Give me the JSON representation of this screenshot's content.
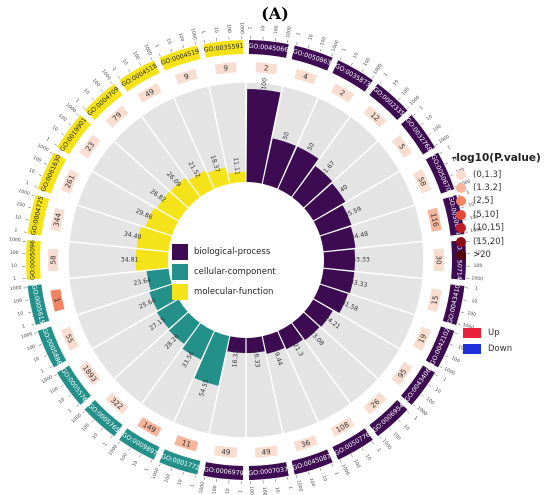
{
  "panel_label": "(A)",
  "legend": {
    "title": "-log10(P.value)",
    "items": [
      {
        "label": "(0,1.3]",
        "color": "#f9ddd0"
      },
      {
        "label": "(1.3,2]",
        "color": "#f6b59a"
      },
      {
        "label": "(2,5]",
        "color": "#ef8362"
      },
      {
        "label": "(5,10]",
        "color": "#e64a36"
      },
      {
        "label": "(10,15]",
        "color": "#c21d24"
      },
      {
        "label": "(15,20]",
        "color": "#8f0d16"
      },
      {
        "label": ">20",
        "color": "#55040a"
      }
    ]
  },
  "reg_legend": [
    {
      "label": "Up",
      "color": "#e8203a"
    },
    {
      "label": "Down",
      "color": "#1c2fd8"
    }
  ],
  "colors": {
    "biological_process": "#3d0b52",
    "cellular_component": "#23908a",
    "molecular_function": "#f5e31a",
    "track_bg": "#e4e4e4",
    "track_line": "#ffffff"
  },
  "chart_data": {
    "type": "circular-bar",
    "scale_ticks": [
      "1",
      "10",
      "100",
      "1000"
    ],
    "category_legend": [
      {
        "key": "biological_process",
        "label": "biological-process"
      },
      {
        "key": "cellular_component",
        "label": "cellular-component"
      },
      {
        "key": "molecular_function",
        "label": "molecular-function"
      }
    ],
    "terms": [
      {
        "id": "GO:0045066",
        "category": "biological_process",
        "count": 2,
        "p_bin": 0,
        "rich_factor": 100
      },
      {
        "id": "GO:0050863",
        "category": "biological_process",
        "count": 4,
        "p_bin": 0,
        "rich_factor": 50
      },
      {
        "id": "GO:0035873",
        "category": "biological_process",
        "count": 2,
        "p_bin": 0,
        "rich_factor": 50
      },
      {
        "id": "GO:0002335",
        "category": "biological_process",
        "count": 12,
        "p_bin": 0,
        "rich_factor": 41.67
      },
      {
        "id": "GO:0032768",
        "category": "biological_process",
        "count": 5,
        "p_bin": 0,
        "rich_factor": 40
      },
      {
        "id": "GO:0050670",
        "category": "biological_process",
        "count": 58,
        "p_bin": 0,
        "rich_factor": 35.59
      },
      {
        "id": "GO:0050671",
        "category": "biological_process",
        "count": 116,
        "p_bin": 1,
        "rich_factor": 34.48
      },
      {
        "id": "GO:0050714",
        "category": "biological_process",
        "count": 30,
        "p_bin": 0,
        "rich_factor": 33.33
      },
      {
        "id": "GO:0043410",
        "category": "biological_process",
        "count": 15,
        "p_bin": 0,
        "rich_factor": 33.33
      },
      {
        "id": "GO:0042102",
        "category": "biological_process",
        "count": 19,
        "p_bin": 0,
        "rich_factor": 31.58
      },
      {
        "id": "GO:0043406",
        "category": "biological_process",
        "count": 95,
        "p_bin": 0,
        "rich_factor": 24.21
      },
      {
        "id": "GO:0006954",
        "category": "biological_process",
        "count": 26,
        "p_bin": 0,
        "rich_factor": 23.08
      },
      {
        "id": "GO:0050776",
        "category": "biological_process",
        "count": 108,
        "p_bin": 0,
        "rich_factor": 21.3
      },
      {
        "id": "GO:0045087",
        "category": "biological_process",
        "count": 36,
        "p_bin": 0,
        "rich_factor": 19.44
      },
      {
        "id": "GO:0007037",
        "category": "biological_process",
        "count": 49,
        "p_bin": 0,
        "rich_factor": 16.33
      },
      {
        "id": "GO:0006979",
        "category": "biological_process",
        "count": 49,
        "p_bin": 0,
        "rich_factor": 16.33
      },
      {
        "id": "GO:0001772",
        "category": "cellular_component",
        "count": 11,
        "p_bin": 1,
        "rich_factor": 54.55
      },
      {
        "id": "GO:0009897",
        "category": "cellular_component",
        "count": 149,
        "p_bin": 1,
        "rich_factor": 33.56
      },
      {
        "id": "GO:0005765",
        "category": "cellular_component",
        "count": 322,
        "p_bin": 0,
        "rich_factor": 28.26
      },
      {
        "id": "GO:0005576",
        "category": "cellular_component",
        "count": 1893,
        "p_bin": 0,
        "rich_factor": 27.15
      },
      {
        "id": "GO:0005886",
        "category": "cellular_component",
        "count": 55,
        "p_bin": 0,
        "rich_factor": 25.64
      },
      {
        "id": "GO:0005615",
        "category": "cellular_component",
        "count": 1,
        "p_bin": 2,
        "rich_factor": 23.64
      },
      {
        "id": "GO:0005096",
        "category": "molecular_function",
        "count": 58,
        "p_bin": 0,
        "rich_factor": 34.81
      },
      {
        "id": "GO:0004725",
        "category": "molecular_function",
        "count": 344,
        "p_bin": 0,
        "rich_factor": 34.48
      },
      {
        "id": "GO:0061630",
        "category": "molecular_function",
        "count": 261,
        "p_bin": 0,
        "rich_factor": 29.86
      },
      {
        "id": "GO:0019901",
        "category": "molecular_function",
        "count": 23,
        "p_bin": 0,
        "rich_factor": 26.82
      },
      {
        "id": "GO:0004709",
        "category": "molecular_function",
        "count": 79,
        "p_bin": 0,
        "rich_factor": 26.09
      },
      {
        "id": "GO:0004518",
        "category": "molecular_function",
        "count": 49,
        "p_bin": 0,
        "rich_factor": 21.52
      },
      {
        "id": "GO:0004519",
        "category": "molecular_function",
        "count": 9,
        "p_bin": 0,
        "rich_factor": 18.37
      },
      {
        "id": "GO:0035591",
        "category": "molecular_function",
        "count": 9,
        "p_bin": 0,
        "rich_factor": 11.11
      }
    ]
  }
}
